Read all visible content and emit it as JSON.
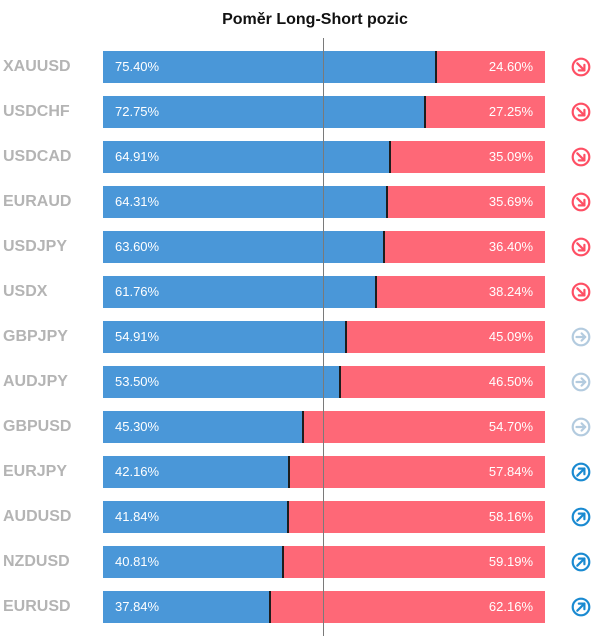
{
  "chart_data": {
    "type": "bar",
    "title": "Poměr Long-Short pozic",
    "categories": [
      "XAUUSD",
      "USDCHF",
      "USDCAD",
      "EURAUD",
      "USDJPY",
      "USDX",
      "GBPJPY",
      "AUDJPY",
      "GBPUSD",
      "EURJPY",
      "AUDUSD",
      "NZDUSD",
      "EURUSD"
    ],
    "series": [
      {
        "values": [
          75.4,
          72.75,
          64.91,
          64.31,
          63.6,
          61.76,
          54.91,
          53.5,
          45.3,
          42.16,
          41.84,
          40.81,
          37.84
        ]
      },
      {
        "values": [
          24.6,
          27.25,
          35.09,
          35.69,
          36.4,
          38.24,
          45.09,
          46.5,
          54.7,
          57.84,
          58.16,
          59.19,
          62.16
        ]
      }
    ],
    "long_labels": [
      "75.40%",
      "72.75%",
      "64.91%",
      "64.31%",
      "63.60%",
      "61.76%",
      "54.91%",
      "53.50%",
      "45.30%",
      "42.16%",
      "41.84%",
      "40.81%",
      "37.84%"
    ],
    "short_labels": [
      "24.60%",
      "27.25%",
      "35.09%",
      "35.69%",
      "36.40%",
      "38.24%",
      "45.09%",
      "46.50%",
      "54.70%",
      "57.84%",
      "58.16%",
      "59.19%",
      "62.16%"
    ],
    "signals": [
      "down",
      "down",
      "down",
      "down",
      "down",
      "down",
      "neutral",
      "neutral",
      "neutral",
      "up",
      "up",
      "up",
      "up"
    ],
    "stacked": true,
    "xlim": [
      0,
      100
    ],
    "grid": false,
    "reference_line": 50,
    "colors": {
      "long": "#4a97d8",
      "short": "#fe6877",
      "divider": "#1d1d1d",
      "signal_down": "#fe4f64",
      "signal_neutral": "#b3cbdf",
      "signal_up": "#1a8ad1"
    },
    "signal_icons": {
      "down": "arrow-down-right-icon",
      "neutral": "arrow-right-icon",
      "up": "arrow-up-right-icon"
    }
  }
}
